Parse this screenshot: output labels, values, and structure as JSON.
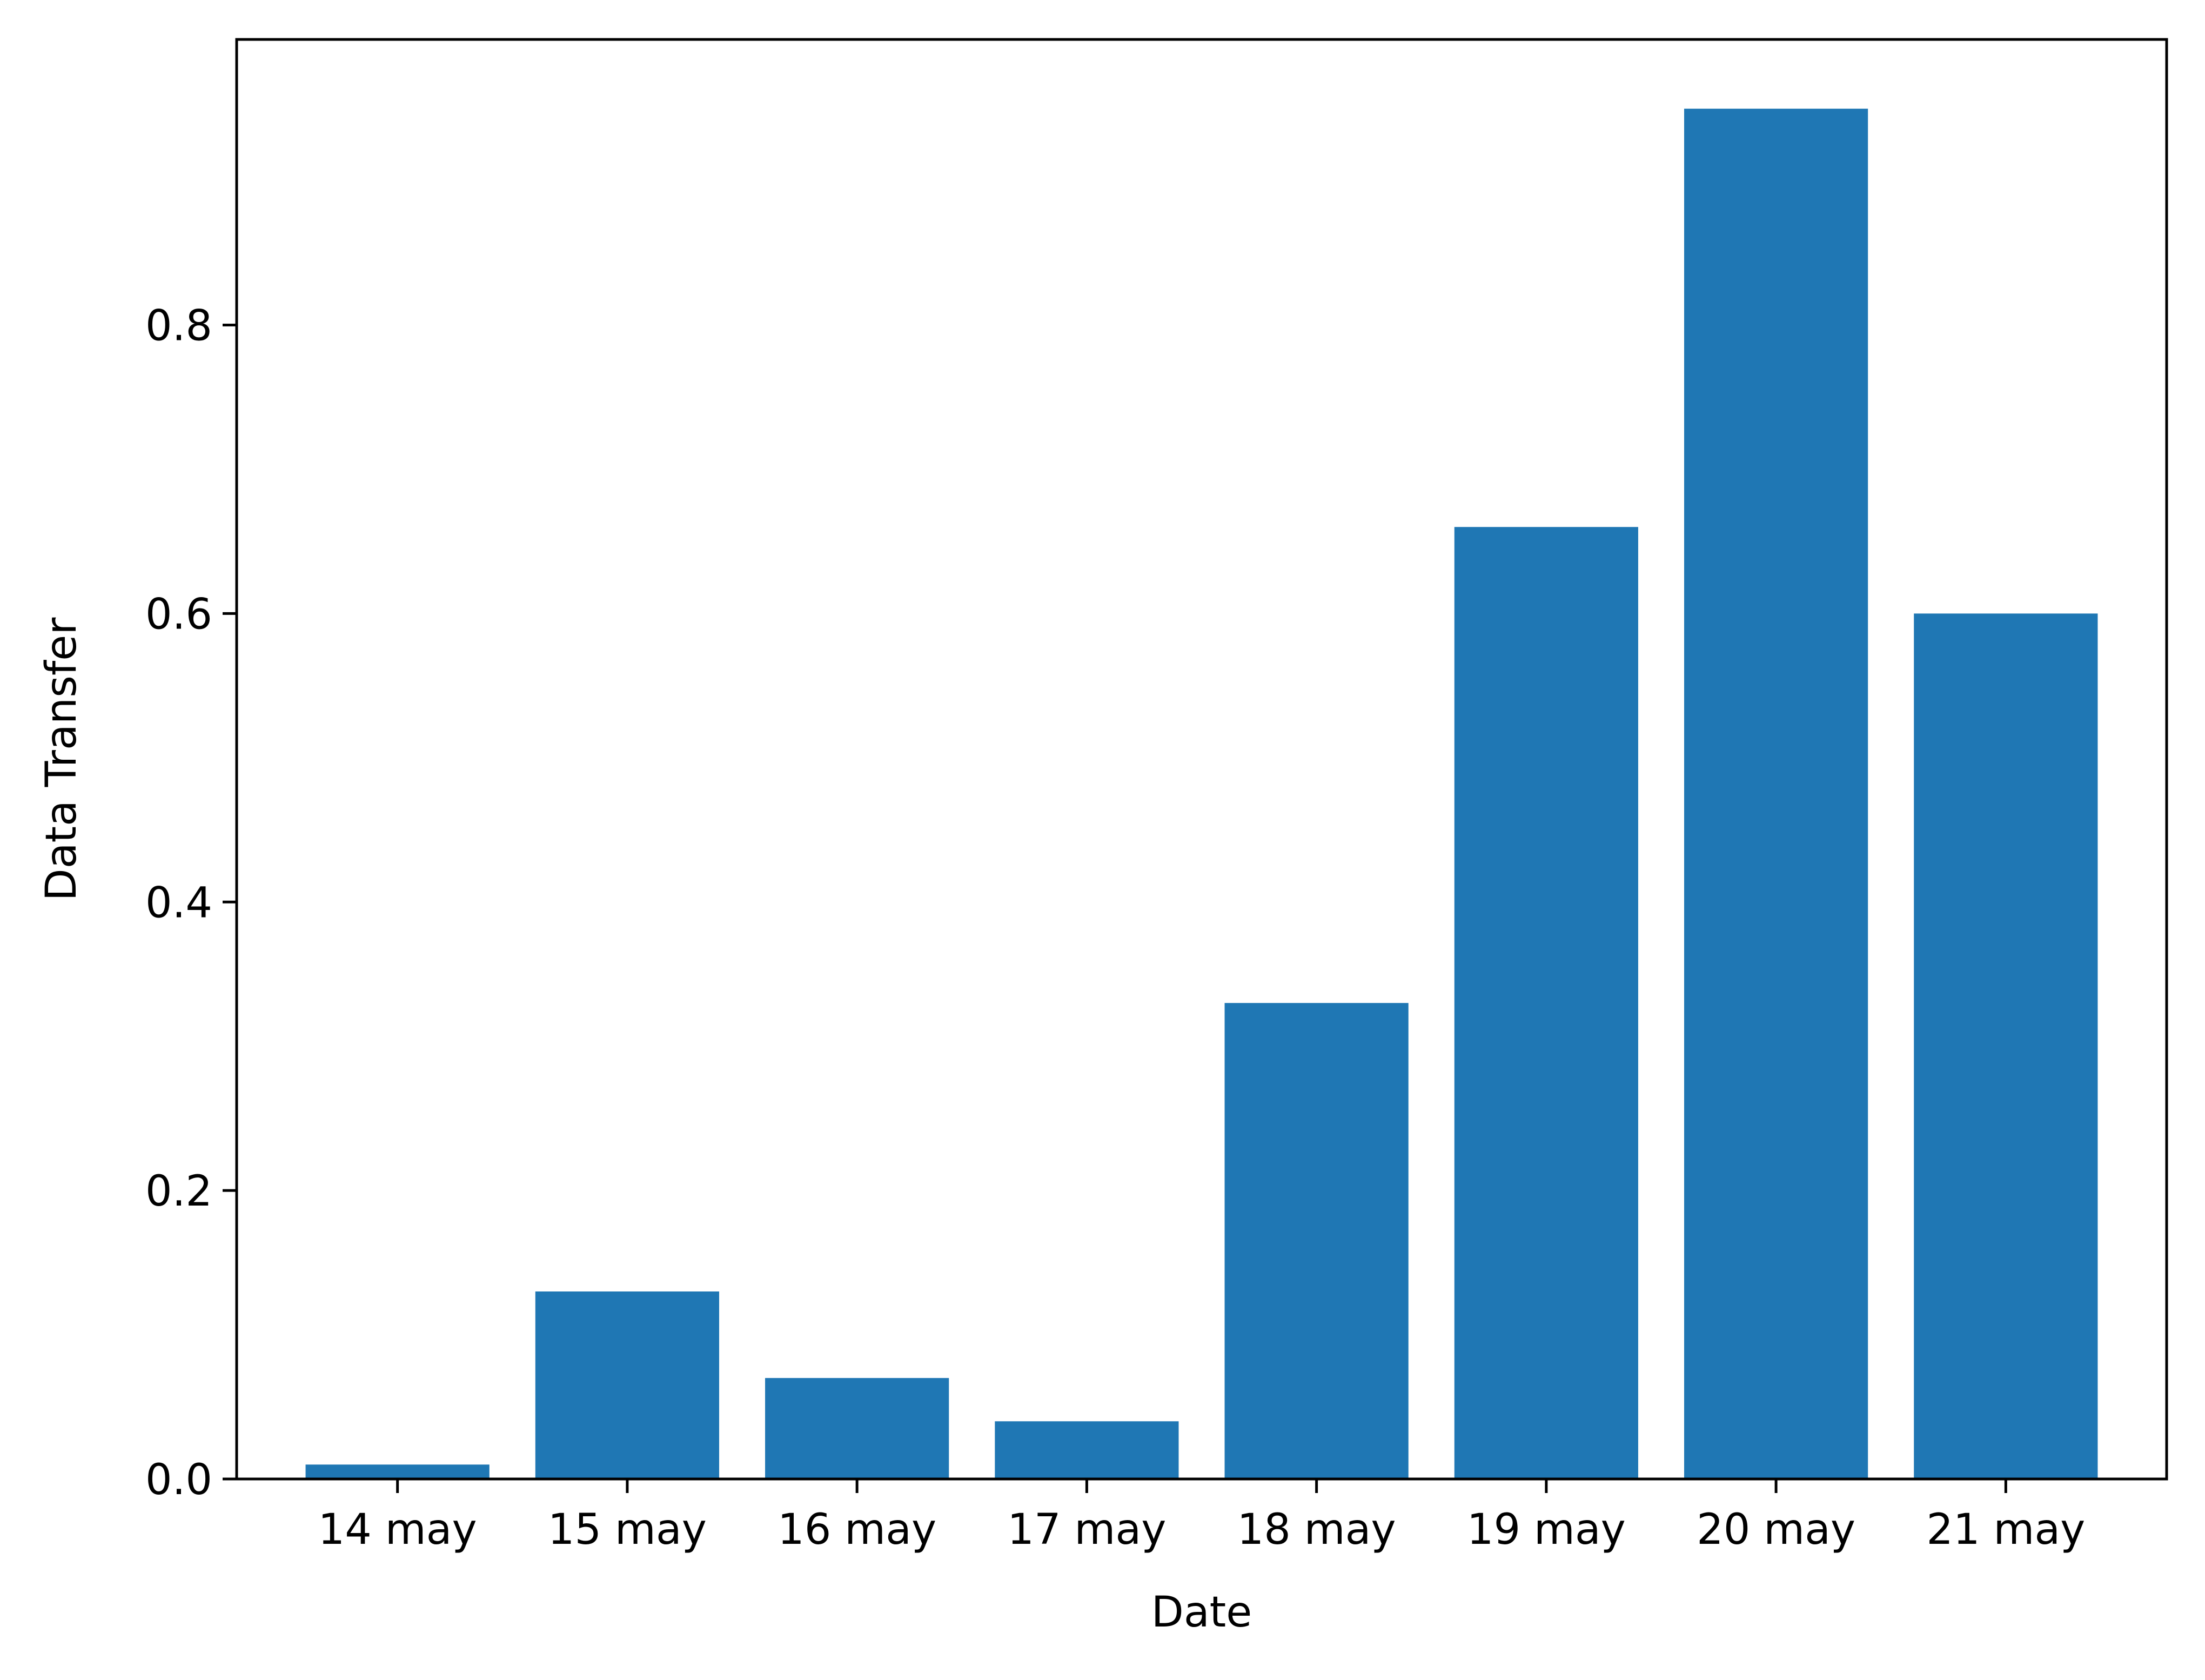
{
  "chart_data": {
    "type": "bar",
    "title": "",
    "xlabel": "Date",
    "ylabel": "Data Transfer",
    "categories": [
      "14 may",
      "15 may",
      "16 may",
      "17 may",
      "18 may",
      "19 may",
      "20 may",
      "21 may"
    ],
    "values": [
      0.01,
      0.13,
      0.07,
      0.04,
      0.33,
      0.66,
      0.95,
      0.6
    ],
    "ylim": [
      0,
      0.998
    ],
    "yticks": [
      0.0,
      0.2,
      0.4,
      0.6,
      0.8
    ],
    "ytick_labels": [
      "0.0",
      "0.2",
      "0.4",
      "0.6",
      "0.8"
    ],
    "grid": false,
    "legend": "none",
    "bar_color": "#1f77b4",
    "axis_color": "#000000"
  }
}
